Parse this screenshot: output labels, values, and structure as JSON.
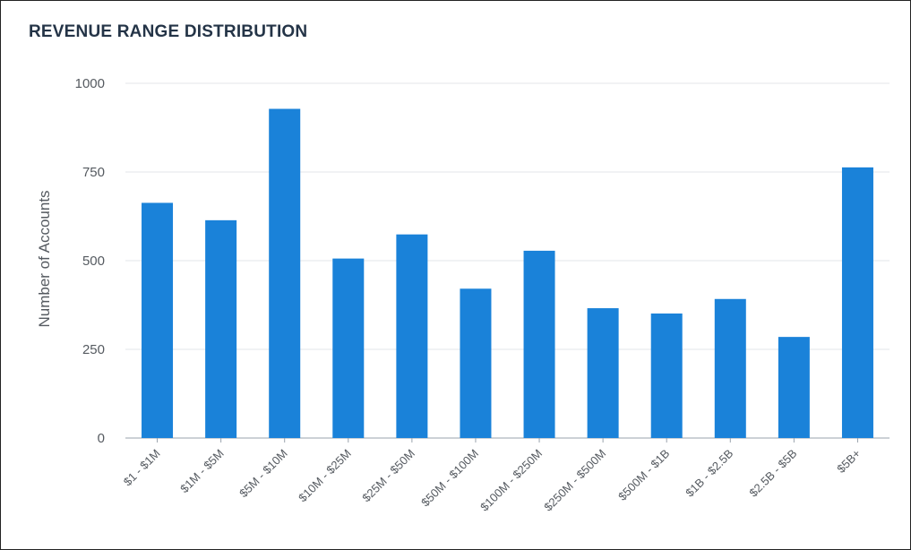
{
  "chart_data": {
    "type": "bar",
    "title": "REVENUE RANGE DISTRIBUTION",
    "xlabel": "",
    "ylabel": "Number of Accounts",
    "categories": [
      "$1 - $1M",
      "$1M - $5M",
      "$5M - $10M",
      "$10M - $25M",
      "$25M - $50M",
      "$50M - $100M",
      "$100M - $250M",
      "$250M - $500M",
      "$500M - $1B",
      "$1B - $2.5B",
      "$2.5B - $5B",
      "$5B+"
    ],
    "values": [
      663,
      614,
      928,
      506,
      574,
      421,
      528,
      366,
      351,
      392,
      285,
      763
    ],
    "ylim": [
      0,
      1000
    ],
    "yticks": [
      0,
      250,
      500,
      750,
      1000
    ],
    "grid": true,
    "legend": "none",
    "colors": {
      "bar": "#1a82d9",
      "grid": "#e3e6ea",
      "axis": "#9aa3ad",
      "text": "#555a60",
      "title": "#243447"
    }
  }
}
